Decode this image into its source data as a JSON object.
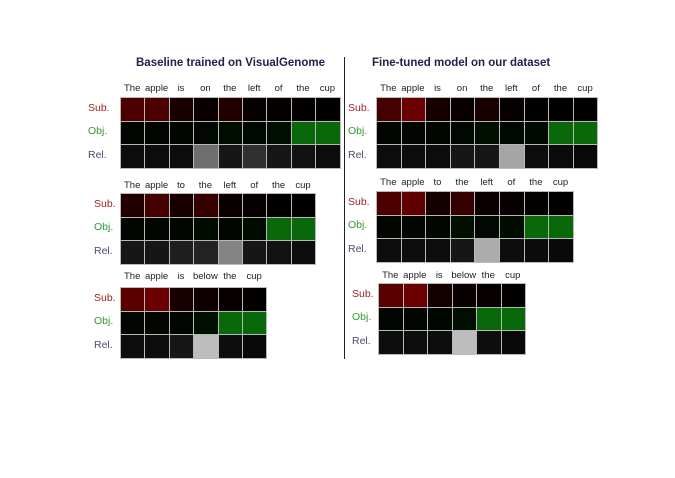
{
  "titles": {
    "left": "Baseline trained on VisualGenome",
    "right": "Fine-tuned model on our dataset"
  },
  "row_labels": [
    "Sub.",
    "Obj.",
    "Rel."
  ],
  "colors": {
    "sub": "#9b2424",
    "obj": "#2f9a2f",
    "rel": "#4a4a7a",
    "max_red": "#8a0000",
    "max_green": "#0a7a0a",
    "gray": "#dcdcdc"
  },
  "panels": [
    {
      "words": [
        "The",
        "apple",
        "is",
        "on",
        "the",
        "left",
        "of",
        "the",
        "cup"
      ],
      "sub": [
        0.55,
        0.55,
        0.18,
        0.08,
        0.25,
        0.05,
        0.03,
        0.02,
        0.02
      ],
      "obj": [
        0.05,
        0.05,
        0.05,
        0.06,
        0.1,
        0.06,
        0.12,
        0.85,
        0.85
      ],
      "rel": [
        0.06,
        0.06,
        0.06,
        0.5,
        0.1,
        0.22,
        0.1,
        0.08,
        0.06
      ]
    },
    {
      "words": [
        "The",
        "apple",
        "to",
        "the",
        "left",
        "of",
        "the",
        "cup"
      ],
      "sub": [
        0.25,
        0.5,
        0.18,
        0.4,
        0.08,
        0.04,
        0.02,
        0.02
      ],
      "obj": [
        0.05,
        0.05,
        0.05,
        0.1,
        0.05,
        0.1,
        0.85,
        0.85
      ],
      "rel": [
        0.1,
        0.1,
        0.14,
        0.16,
        0.6,
        0.1,
        0.08,
        0.06
      ]
    },
    {
      "words": [
        "The",
        "apple",
        "is",
        "below",
        "the",
        "cup"
      ],
      "sub": [
        0.65,
        0.78,
        0.18,
        0.1,
        0.04,
        0.02
      ],
      "obj": [
        0.05,
        0.05,
        0.05,
        0.12,
        0.85,
        0.85
      ],
      "rel": [
        0.06,
        0.06,
        0.1,
        0.86,
        0.06,
        0.04
      ]
    },
    {
      "words": [
        "The",
        "apple",
        "is",
        "on",
        "the",
        "left",
        "of",
        "the",
        "cup"
      ],
      "sub": [
        0.5,
        0.78,
        0.15,
        0.06,
        0.18,
        0.04,
        0.02,
        0.02,
        0.02
      ],
      "obj": [
        0.05,
        0.05,
        0.05,
        0.06,
        0.12,
        0.06,
        0.08,
        0.85,
        0.85
      ],
      "rel": [
        0.06,
        0.06,
        0.06,
        0.1,
        0.1,
        0.75,
        0.06,
        0.05,
        0.04
      ]
    },
    {
      "words": [
        "The",
        "apple",
        "to",
        "the",
        "left",
        "of",
        "the",
        "cup"
      ],
      "sub": [
        0.55,
        0.7,
        0.15,
        0.4,
        0.08,
        0.04,
        0.02,
        0.02
      ],
      "obj": [
        0.05,
        0.05,
        0.05,
        0.12,
        0.06,
        0.1,
        0.85,
        0.85
      ],
      "rel": [
        0.06,
        0.06,
        0.06,
        0.1,
        0.78,
        0.06,
        0.05,
        0.04
      ]
    },
    {
      "words": [
        "The",
        "apple",
        "is",
        "below",
        "the",
        "cup"
      ],
      "sub": [
        0.65,
        0.78,
        0.15,
        0.08,
        0.04,
        0.02
      ],
      "obj": [
        0.05,
        0.05,
        0.05,
        0.12,
        0.85,
        0.85
      ],
      "rel": [
        0.06,
        0.06,
        0.06,
        0.86,
        0.06,
        0.04
      ]
    }
  ]
}
